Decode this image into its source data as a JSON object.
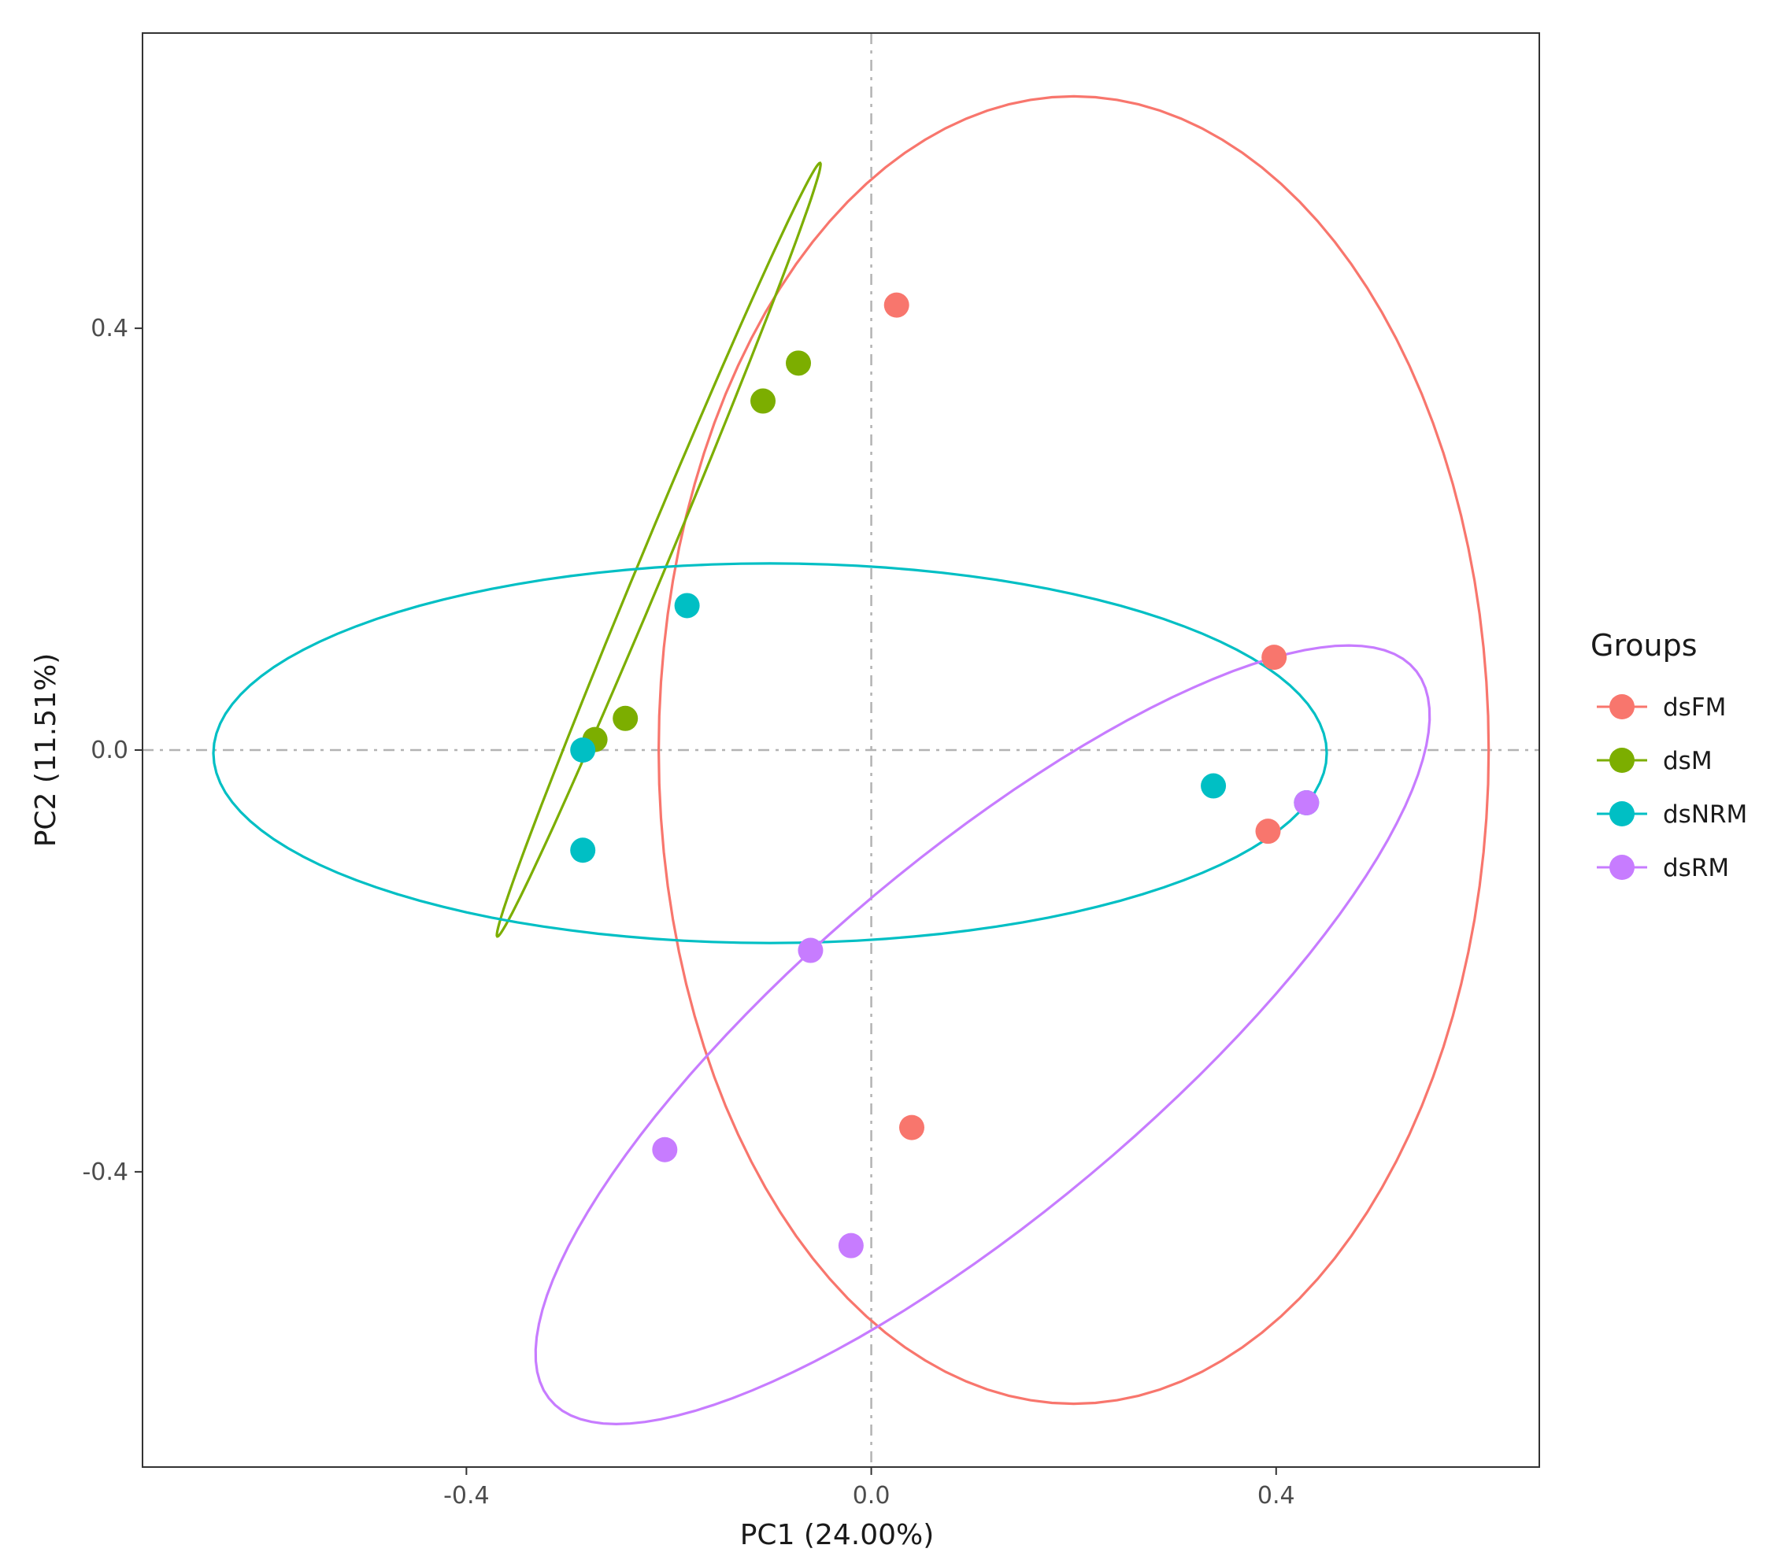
{
  "chart_data": {
    "type": "scatter",
    "title": "",
    "xlabel": "PC1 (24.00%)",
    "ylabel": "PC2 (11.51%)",
    "xlim": [
      -0.72,
      0.66
    ],
    "ylim": [
      -0.68,
      0.68
    ],
    "xticks": [
      -0.4,
      0.0,
      0.4
    ],
    "xtick_labels": [
      "-0.4",
      "0.0",
      "0.4"
    ],
    "yticks": [
      -0.4,
      0.0,
      0.4
    ],
    "ytick_labels": [
      "-0.4",
      "0.0",
      "0.4"
    ],
    "reference_lines": {
      "x": 0,
      "y": 0
    },
    "grid": false,
    "legend": {
      "title": "Groups",
      "position": "right"
    },
    "series": [
      {
        "name": "dsFM",
        "color": "#F8766D",
        "points": [
          [
            0.025,
            0.422
          ],
          [
            0.398,
            0.088
          ],
          [
            0.392,
            -0.077
          ],
          [
            0.04,
            -0.358
          ]
        ],
        "ellipse": {
          "cx": 0.2,
          "cy": 0.0,
          "rx": 0.41,
          "ry": 0.62,
          "angle": 0
        }
      },
      {
        "name": "dsM",
        "color": "#7CAE00",
        "points": [
          [
            -0.072,
            0.367
          ],
          [
            -0.107,
            0.331
          ],
          [
            -0.243,
            0.03
          ],
          [
            -0.273,
            0.01
          ]
        ],
        "ellipse": {
          "cx": -0.21,
          "cy": 0.19,
          "rx": 0.4,
          "ry": 0.013,
          "angle": 66.5
        }
      },
      {
        "name": "dsNRM",
        "color": "#00BFC4",
        "points": [
          [
            -0.182,
            0.137
          ],
          [
            -0.285,
            0.0
          ],
          [
            -0.285,
            -0.095
          ],
          [
            0.338,
            -0.034
          ],
          [
            0.43,
            -0.05
          ]
        ],
        "ellipse": {
          "cx": -0.1,
          "cy": -0.003,
          "rx": 0.55,
          "ry": 0.18,
          "angle": 0
        }
      },
      {
        "name": "dsRM",
        "color": "#C77CFF",
        "points": [
          [
            0.43,
            -0.05
          ],
          [
            -0.06,
            -0.19
          ],
          [
            -0.204,
            -0.379
          ],
          [
            -0.02,
            -0.47
          ]
        ],
        "ellipse": {
          "cx": 0.11,
          "cy": -0.27,
          "rx": 0.55,
          "ry": 0.17,
          "angle": 38.8
        }
      }
    ]
  }
}
